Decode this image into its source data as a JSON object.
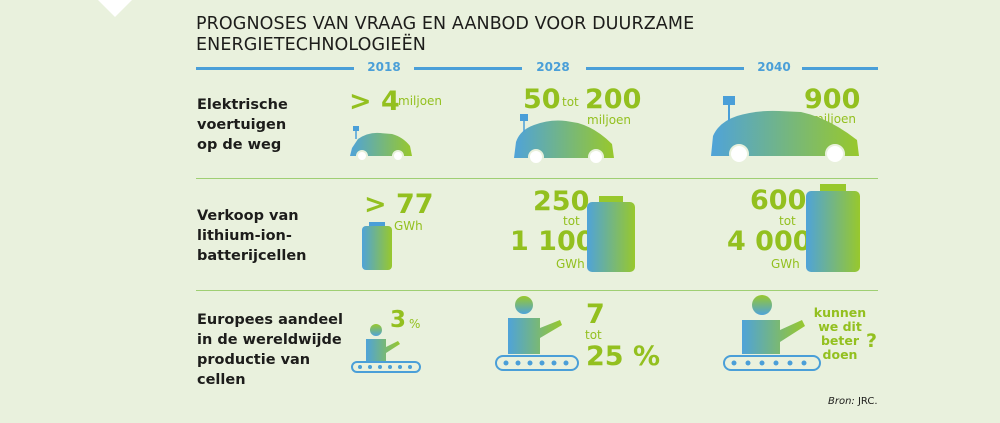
{
  "title": {
    "line1": "PROGNOSES VAN VRAAG EN AANBOD VOOR DUURZAME",
    "line2": "ENERGIETECHNOLOGIEËN"
  },
  "years": [
    "2018",
    "2028",
    "2040"
  ],
  "rows": [
    {
      "label": [
        "Elektrische",
        "voertuigen",
        "op de weg"
      ]
    },
    {
      "label": [
        "Verkoop van",
        "lithium-ion-",
        "batterijcellen"
      ]
    },
    {
      "label": [
        "Europees aandeel",
        "in de wereldwijde",
        "productie van",
        "cellen"
      ]
    }
  ],
  "ev": {
    "y2018": {
      "value": "> 4",
      "unit": "miljoen"
    },
    "y2028": {
      "from": "50",
      "tot": "tot",
      "to": "200",
      "unit": "miljoen"
    },
    "y2040": {
      "value": "900",
      "unit": "miljoen"
    }
  },
  "battery": {
    "y2018": {
      "value": "> 77",
      "unit": "GWh"
    },
    "y2028": {
      "from": "250",
      "tot": "tot",
      "to": "1 100",
      "unit": "GWh"
    },
    "y2040": {
      "from": "600",
      "tot": "tot",
      "to": "4 000",
      "unit": "GWh"
    }
  },
  "share": {
    "y2018": {
      "value": "3",
      "unit": "%"
    },
    "y2028": {
      "from": "7",
      "tot": "tot",
      "to": "25 %"
    },
    "y2040": {
      "line1": "kunnen",
      "line2": "we dit",
      "line3": "beter doen",
      "q": "?"
    }
  },
  "source": {
    "label": "Bron:",
    "value": "JRC."
  },
  "colors": {
    "green": "#93c01f",
    "blue": "#4a9fd8",
    "background": "#e9f1dd"
  }
}
